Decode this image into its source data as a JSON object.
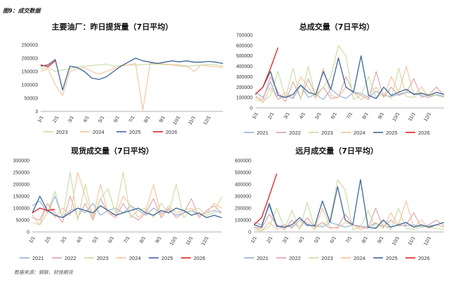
{
  "header": {
    "figure_label": "图9：成交数据"
  },
  "footer": {
    "source": "数据来源：钢联、财信期货"
  },
  "palette": {
    "2021": "#8fb0d8",
    "2022": "#e0a0a8",
    "2023": "#c8dca0",
    "2024": "#f5c29a",
    "2025": "#3e6796",
    "2026": "#e02020"
  },
  "chart_data": [
    {
      "type": "line",
      "title": "主要油厂：昨日提货量（7日平均）",
      "y_ticks": [
        "250003",
        "200003",
        "150003",
        "100003",
        "50003",
        "3"
      ],
      "ylim": [
        3,
        250003
      ],
      "x_ticks": [
        "1/1",
        "2/1",
        "3/1",
        "4/1",
        "5/1",
        "6/1",
        "7/1",
        "8/1",
        "9/1",
        "10/1",
        "11/1",
        "12/1"
      ],
      "legend": [
        "2023",
        "2024",
        "2025",
        "2026"
      ],
      "series": [
        {
          "name": "2023",
          "values": [
            160000,
            165000,
            150000,
            155000,
            160000,
            168000,
            170000,
            172000,
            175000,
            178000,
            170000,
            172000,
            175000,
            174000,
            176000,
            178000,
            177000,
            176000,
            175000,
            170000,
            168000,
            172000,
            174000,
            176000,
            175000,
            170000
          ]
        },
        {
          "name": "2024",
          "values": [
            150000,
            160000,
            100000,
            60000,
            150000,
            160000,
            165000,
            150000,
            140000,
            150000,
            160000,
            170000,
            175000,
            180000,
            5000,
            180000,
            182000,
            178000,
            176000,
            174000,
            172000,
            150000,
            175000,
            170000,
            168000,
            165000
          ]
        },
        {
          "name": "2025",
          "values": [
            170000,
            175000,
            195000,
            80000,
            170000,
            165000,
            150000,
            125000,
            120000,
            130000,
            150000,
            170000,
            185000,
            200000,
            190000,
            185000,
            180000,
            185000,
            190000,
            186000,
            190000,
            185000,
            185000,
            188000,
            185000,
            180000
          ]
        },
        {
          "name": "2026",
          "values": [
            175000,
            168000,
            190000
          ]
        }
      ]
    },
    {
      "type": "line",
      "title": "总成交量（7日平均）",
      "y_ticks": [
        "700000",
        "600000",
        "500000",
        "400000",
        "300000",
        "200000",
        "100000",
        "0"
      ],
      "ylim": [
        0,
        700000
      ],
      "x_ticks": [
        "1/1",
        "2/1",
        "3/1",
        "4/1",
        "5/1",
        "6/1",
        "7/1",
        "8/1",
        "9/1",
        "10/1",
        "11/1",
        "12/1"
      ],
      "legend": [
        "2021",
        "2022",
        "2023",
        "2024",
        "2025",
        "2026"
      ],
      "series": [
        {
          "name": "2021",
          "values": [
            150000,
            100000,
            250000,
            80000,
            120000,
            90000,
            220000,
            100000,
            130000,
            80000,
            180000,
            120000,
            90000,
            150000,
            140000,
            100000,
            160000,
            120000,
            110000,
            130000,
            150000,
            140000,
            120000,
            100000,
            130000,
            110000
          ]
        },
        {
          "name": "2022",
          "values": [
            100000,
            80000,
            300000,
            150000,
            60000,
            250000,
            90000,
            280000,
            120000,
            200000,
            90000,
            100000,
            300000,
            150000,
            120000,
            80000,
            350000,
            100000,
            200000,
            120000,
            150000,
            280000,
            100000,
            130000,
            200000,
            120000
          ]
        },
        {
          "name": "2023",
          "values": [
            80000,
            60000,
            120000,
            350000,
            100000,
            380000,
            80000,
            400000,
            100000,
            200000,
            300000,
            600000,
            500000,
            80000,
            120000,
            300000,
            100000,
            140000,
            90000,
            380000,
            110000,
            100000,
            150000,
            130000,
            120000,
            100000
          ]
        },
        {
          "name": "2024",
          "values": [
            120000,
            50000,
            200000,
            80000,
            150000,
            100000,
            300000,
            200000,
            90000,
            380000,
            120000,
            100000,
            200000,
            150000,
            80000,
            120000,
            200000,
            100000,
            300000,
            150000,
            400000,
            120000,
            200000,
            100000,
            150000,
            130000
          ]
        },
        {
          "name": "2025",
          "values": [
            130000,
            200000,
            350000,
            120000,
            100000,
            130000,
            220000,
            150000,
            130000,
            350000,
            180000,
            480000,
            200000,
            150000,
            500000,
            120000,
            90000,
            200000,
            120000,
            150000,
            180000,
            130000,
            140000,
            120000,
            150000,
            130000
          ]
        },
        {
          "name": "2026",
          "values": [
            130000,
            200000,
            380000,
            580000
          ]
        }
      ]
    },
    {
      "type": "line",
      "title": "现货成交量（7日平均）",
      "y_ticks": [
        "300000",
        "250000",
        "200000",
        "150000",
        "100000",
        "50000",
        "0"
      ],
      "ylim": [
        0,
        300000
      ],
      "x_ticks": [
        "1/1",
        "2/1",
        "3/1",
        "4/1",
        "5/1",
        "6/1",
        "7/1",
        "8/1",
        "9/1",
        "10/1",
        "11/1",
        "12/1"
      ],
      "legend": [
        "2021",
        "2022",
        "2023",
        "2024",
        "2025",
        "2026"
      ],
      "series": [
        {
          "name": "2021",
          "values": [
            110000,
            130000,
            80000,
            150000,
            60000,
            90000,
            100000,
            80000,
            120000,
            70000,
            90000,
            100000,
            80000,
            110000,
            90000,
            70000,
            100000,
            80000,
            90000,
            70000,
            80000,
            90000,
            70000,
            80000,
            90000,
            80000
          ]
        },
        {
          "name": "2022",
          "values": [
            60000,
            50000,
            120000,
            80000,
            40000,
            150000,
            60000,
            120000,
            50000,
            140000,
            80000,
            60000,
            120000,
            70000,
            50000,
            80000,
            140000,
            60000,
            100000,
            60000,
            80000,
            140000,
            60000,
            90000,
            110000,
            80000
          ]
        },
        {
          "name": "2023",
          "values": [
            40000,
            30000,
            80000,
            170000,
            60000,
            250000,
            50000,
            200000,
            60000,
            140000,
            180000,
            80000,
            250000,
            60000,
            90000,
            100000,
            60000,
            120000,
            80000,
            200000,
            60000,
            90000,
            100000,
            70000,
            80000,
            150000
          ]
        },
        {
          "name": "2024",
          "values": [
            70000,
            30000,
            120000,
            60000,
            100000,
            70000,
            250000,
            150000,
            60000,
            200000,
            80000,
            70000,
            150000,
            110000,
            60000,
            90000,
            200000,
            70000,
            110000,
            80000,
            90000,
            100000,
            70000,
            80000,
            120000,
            100000
          ]
        },
        {
          "name": "2025",
          "values": [
            80000,
            150000,
            90000,
            70000,
            60000,
            80000,
            100000,
            90000,
            80000,
            110000,
            90000,
            70000,
            80000,
            90000,
            100000,
            80000,
            70000,
            90000,
            80000,
            100000,
            90000,
            70000,
            80000,
            60000,
            70000,
            60000
          ]
        },
        {
          "name": "2026",
          "values": [
            80000,
            100000,
            90000,
            95000
          ]
        }
      ]
    },
    {
      "type": "line",
      "title": "远月成交量（7日平均）",
      "y_ticks": [
        "600000",
        "500000",
        "400000",
        "300000",
        "200000",
        "100000",
        "0"
      ],
      "ylim": [
        0,
        600000
      ],
      "x_ticks": [
        "1/1",
        "2/1",
        "3/1",
        "4/1",
        "5/1",
        "6/1",
        "7/1",
        "8/1",
        "9/1",
        "10/1",
        "11/1",
        "12/1"
      ],
      "legend": [
        "2021",
        "2022",
        "2023",
        "2024",
        "2025",
        "2026"
      ],
      "series": [
        {
          "name": "2021",
          "values": [
            80000,
            60000,
            220000,
            40000,
            60000,
            40000,
            100000,
            50000,
            60000,
            40000,
            80000,
            60000,
            40000,
            60000,
            50000,
            40000,
            70000,
            50000,
            40000,
            60000,
            50000,
            60000,
            40000,
            50000,
            60000,
            40000
          ]
        },
        {
          "name": "2022",
          "values": [
            40000,
            30000,
            150000,
            60000,
            20000,
            100000,
            30000,
            120000,
            40000,
            80000,
            30000,
            40000,
            150000,
            60000,
            40000,
            30000,
            200000,
            40000,
            100000,
            50000,
            60000,
            160000,
            40000,
            60000,
            100000,
            50000
          ]
        },
        {
          "name": "2023",
          "values": [
            20000,
            10000,
            40000,
            200000,
            30000,
            180000,
            20000,
            250000,
            30000,
            60000,
            100000,
            440000,
            350000,
            20000,
            40000,
            180000,
            30000,
            60000,
            20000,
            200000,
            30000,
            20000,
            50000,
            40000,
            30000,
            20000
          ]
        },
        {
          "name": "2024",
          "values": [
            40000,
            10000,
            80000,
            20000,
            60000,
            30000,
            100000,
            80000,
            20000,
            200000,
            40000,
            30000,
            80000,
            60000,
            20000,
            40000,
            80000,
            30000,
            160000,
            60000,
            260000,
            40000,
            100000,
            30000,
            60000,
            40000
          ]
        },
        {
          "name": "2025",
          "values": [
            60000,
            40000,
            240000,
            50000,
            40000,
            60000,
            120000,
            60000,
            50000,
            260000,
            80000,
            380000,
            100000,
            60000,
            440000,
            40000,
            30000,
            100000,
            40000,
            60000,
            80000,
            40000,
            60000,
            40000,
            60000,
            80000
          ]
        },
        {
          "name": "2026",
          "values": [
            60000,
            120000,
            300000,
            490000
          ]
        }
      ]
    }
  ]
}
